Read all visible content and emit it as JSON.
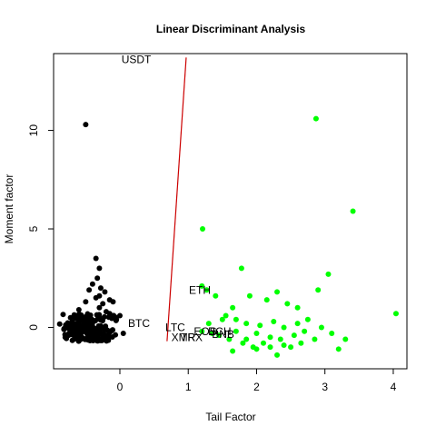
{
  "chart_data": {
    "type": "scatter",
    "title": "Linear Discriminant Analysis",
    "xlabel": "Tail Factor",
    "ylabel": "Moment factor",
    "xlim": [
      -0.97,
      4.2
    ],
    "ylim": [
      -2.1,
      13.9
    ],
    "x_ticks": [
      0,
      1,
      2,
      3,
      4
    ],
    "y_ticks": [
      0,
      5,
      10
    ],
    "grid": false,
    "colors": {
      "class_a": "#000000",
      "class_b": "#00ff00",
      "boundary": "#cc0000"
    },
    "boundary_line": {
      "x": [
        0.69,
        0.97
      ],
      "y": [
        -0.7,
        13.7
      ]
    },
    "labels": [
      {
        "text": "USDT",
        "x": 0.24,
        "y": 13.6
      },
      {
        "text": "ETH",
        "x": 1.17,
        "y": 1.9
      },
      {
        "text": "BTC",
        "x": 0.28,
        "y": 0.2
      },
      {
        "text": "LTC",
        "x": 0.81,
        "y": 0.0
      },
      {
        "text": "EOS",
        "x": 1.25,
        "y": -0.2
      },
      {
        "text": "BCH",
        "x": 1.46,
        "y": -0.2
      },
      {
        "text": "XMR",
        "x": 0.93,
        "y": -0.5
      },
      {
        "text": "TRX",
        "x": 1.05,
        "y": -0.5
      },
      {
        "text": "BNB",
        "x": 1.51,
        "y": -0.35
      }
    ],
    "series": [
      {
        "values": [
          [
            -0.5,
            10.3
          ],
          [
            -0.35,
            3.5
          ],
          [
            -0.3,
            3.0
          ],
          [
            -0.33,
            2.5
          ],
          [
            -0.28,
            2.0
          ],
          [
            -0.4,
            2.2
          ],
          [
            -0.22,
            1.8
          ],
          [
            -0.3,
            1.6
          ],
          [
            -0.45,
            1.9
          ],
          [
            -0.15,
            1.4
          ],
          [
            -0.1,
            1.3
          ],
          [
            -0.25,
            1.2
          ],
          [
            -0.35,
            1.5
          ],
          [
            -0.5,
            1.3
          ],
          [
            -0.6,
            0.9
          ],
          [
            0.0,
            0.6
          ],
          [
            -0.05,
            0.4
          ],
          [
            0.05,
            -0.3
          ],
          [
            -0.75,
            -0.4
          ],
          [
            -0.8,
            -0.5
          ],
          [
            -0.2,
            0.8
          ],
          [
            -0.15,
            0.7
          ],
          [
            -0.3,
            1.0
          ]
        ]
      },
      {
        "values": [
          [
            2.87,
            10.6
          ],
          [
            3.41,
            5.9
          ],
          [
            1.21,
            5.0
          ],
          [
            1.78,
            3.0
          ],
          [
            3.05,
            2.7
          ],
          [
            4.04,
            0.7
          ],
          [
            1.2,
            2.1
          ],
          [
            1.27,
            1.9
          ],
          [
            1.4,
            1.6
          ],
          [
            1.65,
            1.0
          ],
          [
            1.9,
            1.6
          ],
          [
            2.15,
            1.4
          ],
          [
            2.3,
            1.8
          ],
          [
            2.45,
            1.2
          ],
          [
            2.6,
            1.0
          ],
          [
            2.9,
            1.9
          ],
          [
            1.55,
            0.6
          ],
          [
            1.7,
            0.4
          ],
          [
            1.85,
            0.2
          ],
          [
            2.05,
            0.1
          ],
          [
            2.25,
            0.3
          ],
          [
            2.4,
            0.0
          ],
          [
            2.6,
            0.2
          ],
          [
            2.75,
            0.4
          ],
          [
            2.95,
            0.0
          ],
          [
            3.1,
            -0.3
          ],
          [
            3.2,
            -1.1
          ],
          [
            3.3,
            -0.6
          ],
          [
            2.5,
            -1.0
          ],
          [
            2.3,
            -1.4
          ],
          [
            2.1,
            -0.8
          ],
          [
            1.95,
            -1.0
          ],
          [
            1.8,
            -0.8
          ],
          [
            1.6,
            -0.6
          ],
          [
            1.45,
            -0.4
          ],
          [
            1.35,
            -0.3
          ],
          [
            1.2,
            -0.2
          ],
          [
            1.3,
            0.2
          ],
          [
            1.5,
            0.4
          ],
          [
            1.7,
            -0.2
          ],
          [
            2.0,
            -0.3
          ],
          [
            2.2,
            -0.5
          ],
          [
            2.35,
            -0.6
          ],
          [
            2.55,
            -0.4
          ],
          [
            2.7,
            -0.2
          ],
          [
            2.85,
            -0.6
          ],
          [
            2.65,
            -0.8
          ],
          [
            2.4,
            -0.9
          ],
          [
            2.2,
            -1.0
          ],
          [
            2.0,
            -1.1
          ],
          [
            1.85,
            -0.6
          ],
          [
            1.65,
            -1.2
          ]
        ]
      }
    ]
  }
}
